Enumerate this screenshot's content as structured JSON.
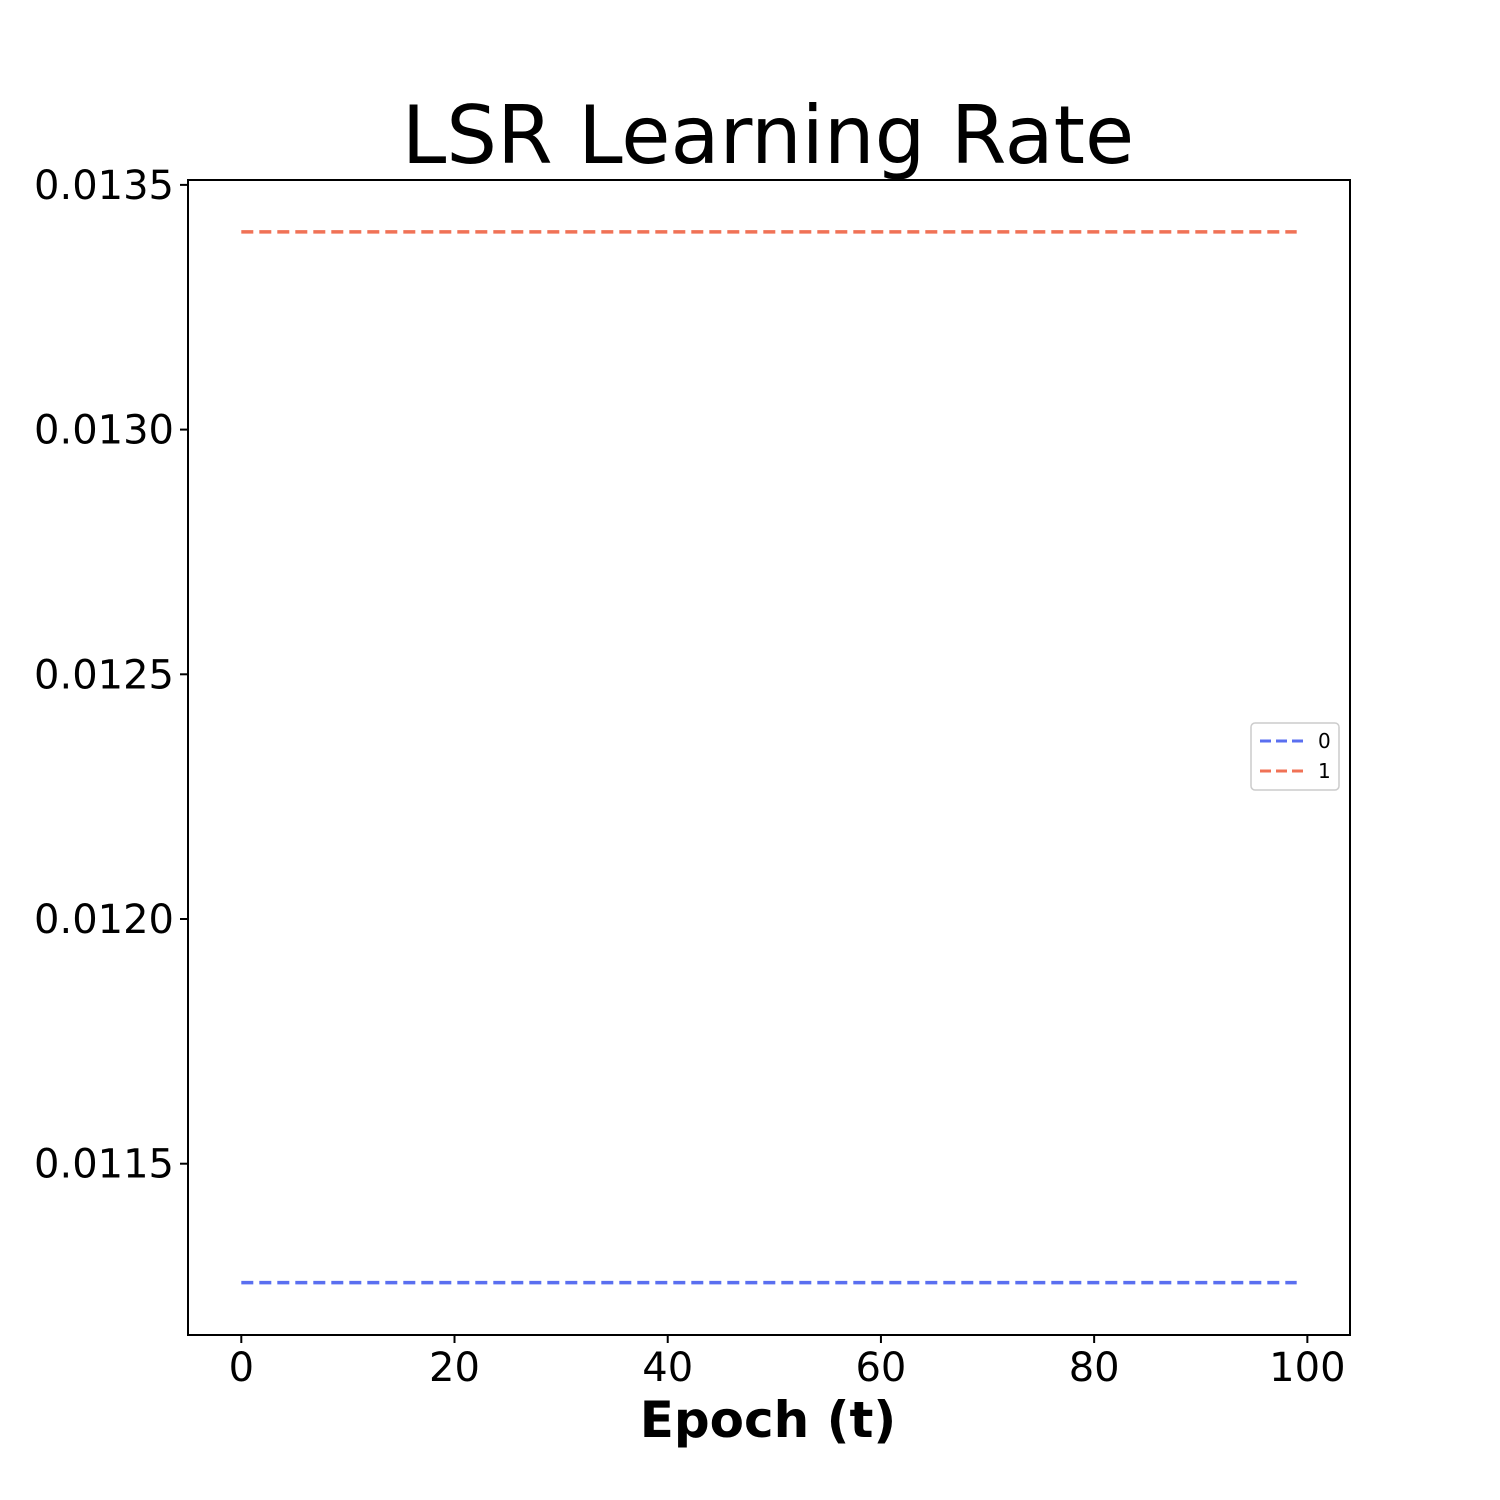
{
  "chart_data": {
    "type": "line",
    "title": "LSR Learning Rate",
    "xlabel": "Epoch (t)",
    "ylabel": "",
    "xlim": [
      -5,
      104
    ],
    "ylim": [
      0.01115,
      0.01351
    ],
    "x_ticks": [
      0,
      20,
      40,
      60,
      80,
      100
    ],
    "x_tick_labels": [
      "0",
      "20",
      "40",
      "60",
      "80",
      "100"
    ],
    "y_ticks": [
      0.0115,
      0.012,
      0.0125,
      0.013,
      0.0135
    ],
    "y_tick_labels": [
      "0.0115",
      "0.0120",
      "0.0125",
      "0.0130",
      "0.0135"
    ],
    "grid": false,
    "legend_position": "center-right",
    "x_range": [
      0,
      99
    ],
    "series": [
      {
        "name": "0",
        "color": "#5a6ff0",
        "line_style": "dashed",
        "value": 0.011257
      },
      {
        "name": "1",
        "color": "#f07256",
        "line_style": "dashed",
        "value": 0.013404
      }
    ]
  }
}
